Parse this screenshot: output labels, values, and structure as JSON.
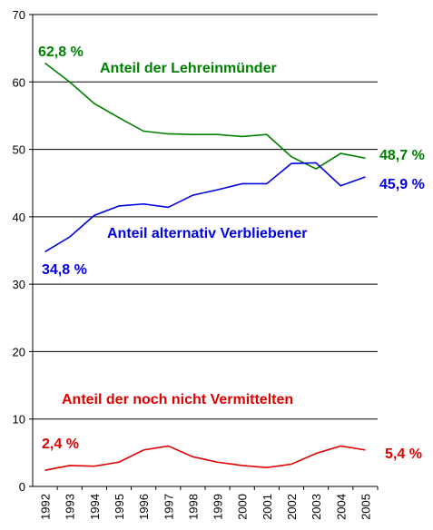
{
  "chart_data": {
    "type": "line",
    "categories": [
      "1992",
      "1993",
      "1994",
      "1995",
      "1996",
      "1997",
      "1998",
      "1999",
      "2000",
      "2001",
      "2002",
      "2003",
      "2004",
      "2005"
    ],
    "series": [
      {
        "name": "Anteil der Lehreinmünder",
        "color": "#008000",
        "values": [
          62.8,
          60.0,
          56.8,
          54.7,
          52.7,
          52.3,
          52.2,
          52.2,
          51.9,
          52.2,
          48.9,
          47.1,
          49.4,
          48.7
        ],
        "annotations": [
          "62,8 %",
          "48,7 %"
        ]
      },
      {
        "name": "Anteil alternativ Verbliebener",
        "color": "#0000e0",
        "values": [
          34.8,
          37.0,
          40.2,
          41.6,
          41.9,
          41.4,
          43.2,
          44.0,
          44.9,
          44.9,
          47.9,
          48.0,
          44.6,
          45.9
        ],
        "annotations": [
          "34,8 %",
          "45,9 %"
        ]
      },
      {
        "name": "Anteil der noch nicht Vermittelten",
        "color": "#e00000",
        "values": [
          2.4,
          3.1,
          3.0,
          3.6,
          5.4,
          6.0,
          4.4,
          3.6,
          3.1,
          2.8,
          3.3,
          4.9,
          6.0,
          5.4
        ],
        "annotations": [
          "2,4 %",
          "5,4 %"
        ]
      }
    ],
    "ylim": [
      0,
      70
    ],
    "yticks": [
      0,
      10,
      20,
      30,
      40,
      50,
      60,
      70
    ],
    "grid": true
  }
}
